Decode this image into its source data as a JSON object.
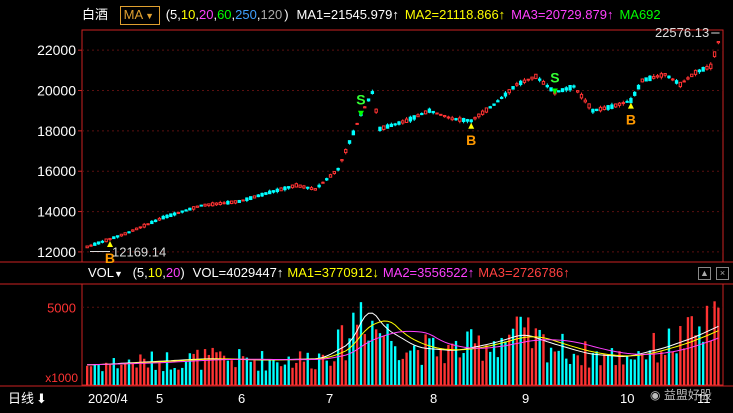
{
  "header": {
    "title": "白酒",
    "ma_button": "MA",
    "params_open": "(",
    "params": [
      {
        "text": "5",
        "color": "#ffffff"
      },
      {
        "text": "10",
        "color": "#ffff00"
      },
      {
        "text": "20",
        "color": "#ff40ff"
      },
      {
        "text": "60",
        "color": "#00ff00"
      },
      {
        "text": "250",
        "color": "#3fa0ff"
      },
      {
        "text": "120",
        "color": "#aaaaaa"
      }
    ],
    "params_close": ")",
    "ma_values": [
      {
        "text": "MA1=21545.979↑",
        "color": "#ffffff"
      },
      {
        "text": "MA2=21118.866↑",
        "color": "#ffff00"
      },
      {
        "text": "MA3=20729.879↑",
        "color": "#ff40ff"
      },
      {
        "text": "MA692",
        "color": "#00ff00"
      }
    ]
  },
  "volume_header": {
    "label": "VOL",
    "params_open": "(",
    "params": [
      {
        "text": "5",
        "color": "#ffffff"
      },
      {
        "text": "10",
        "color": "#ffff00"
      },
      {
        "text": "20",
        "color": "#ff40ff"
      }
    ],
    "params_close": ")",
    "values": [
      {
        "text": "VOL=4029447↑",
        "color": "#ffffff"
      },
      {
        "text": "MA1=3770912↓",
        "color": "#ffff00"
      },
      {
        "text": "MA2=3556522↑",
        "color": "#ff40ff"
      },
      {
        "text": "MA3=2726786↑",
        "color": "#ff4040"
      }
    ],
    "btn_up": "▲",
    "btn_close": "×"
  },
  "footer": {
    "period": "日线",
    "arrow": "⬇",
    "date_labels": [
      "2020/4",
      "5",
      "6",
      "7",
      "8",
      "9",
      "10",
      "11"
    ]
  },
  "watermark": "益盟好股",
  "colors": {
    "up": "#ff3333",
    "down": "#00ffff",
    "axis": "#cc2222",
    "grid": "#5a1010"
  },
  "chart_data": {
    "type": "candlestick",
    "price_axis": {
      "ticks": [
        12000,
        14000,
        16000,
        18000,
        20000,
        22000
      ],
      "range": [
        11500,
        23000
      ]
    },
    "volume_axis": {
      "ticks": [
        5000
      ],
      "unit": "x1000",
      "range": [
        0,
        6500
      ]
    },
    "annotations": {
      "high_label": "22576.13",
      "low_label": "12169.14",
      "signals": [
        {
          "text": "B",
          "type": "buy",
          "index": 6
        },
        {
          "text": "S",
          "type": "sell",
          "index": 72
        },
        {
          "text": "B",
          "type": "buy",
          "index": 101
        },
        {
          "text": "S",
          "type": "sell",
          "index": 123
        },
        {
          "text": "B",
          "type": "buy",
          "index": 143
        }
      ]
    },
    "anchors": [
      [
        0,
        12250
      ],
      [
        10,
        12900
      ],
      [
        20,
        13700
      ],
      [
        30,
        14300
      ],
      [
        40,
        14500
      ],
      [
        48,
        14950
      ],
      [
        55,
        15300
      ],
      [
        60,
        15100
      ],
      [
        66,
        16100
      ],
      [
        72,
        18800
      ],
      [
        75,
        19900
      ],
      [
        77,
        18100
      ],
      [
        84,
        18500
      ],
      [
        90,
        19000
      ],
      [
        96,
        18600
      ],
      [
        101,
        18500
      ],
      [
        107,
        19300
      ],
      [
        113,
        20300
      ],
      [
        118,
        20700
      ],
      [
        123,
        19900
      ],
      [
        128,
        20200
      ],
      [
        133,
        19000
      ],
      [
        138,
        19200
      ],
      [
        143,
        19500
      ],
      [
        146,
        20500
      ],
      [
        152,
        20800
      ],
      [
        156,
        20300
      ],
      [
        160,
        20900
      ],
      [
        164,
        21200
      ],
      [
        166,
        22400
      ]
    ],
    "volume_anchors": [
      [
        0,
        1300
      ],
      [
        15,
        1500
      ],
      [
        30,
        1700
      ],
      [
        45,
        1600
      ],
      [
        60,
        1700
      ],
      [
        68,
        2800
      ],
      [
        72,
        5200
      ],
      [
        76,
        3700
      ],
      [
        85,
        2400
      ],
      [
        95,
        2200
      ],
      [
        105,
        2700
      ],
      [
        113,
        3300
      ],
      [
        120,
        2700
      ],
      [
        130,
        2000
      ],
      [
        140,
        1800
      ],
      [
        150,
        2400
      ],
      [
        158,
        3100
      ],
      [
        166,
        4000
      ]
    ]
  }
}
